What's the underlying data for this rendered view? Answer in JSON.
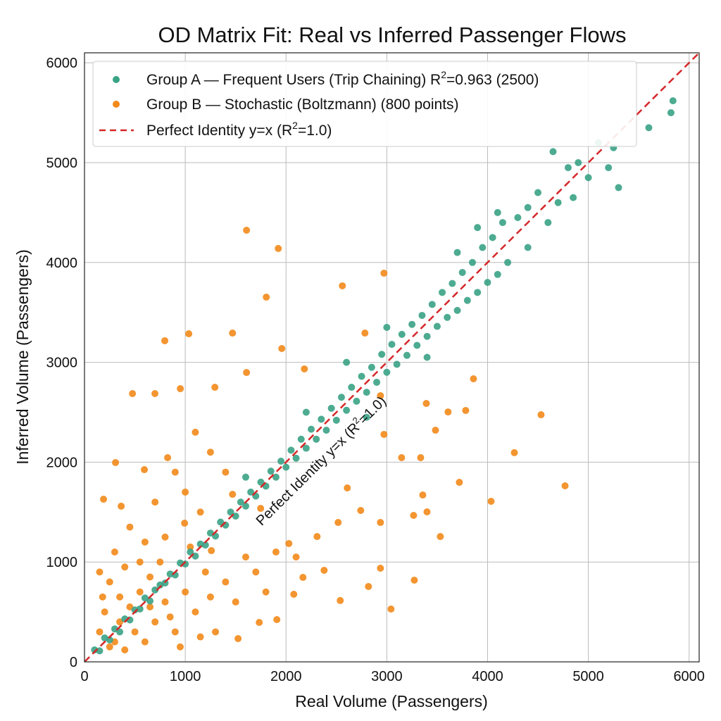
{
  "chart_data": {
    "type": "scatter",
    "title": "OD Matrix Fit: Real vs Inferred Passenger Flows",
    "xlabel": "Real Volume (Passengers)",
    "ylabel": "Inferred Volume (Passengers)",
    "xlim": [
      0,
      6100
    ],
    "ylim": [
      0,
      6100
    ],
    "xticks": [
      0,
      1000,
      2000,
      3000,
      4000,
      5000,
      6000
    ],
    "yticks": [
      0,
      1000,
      2000,
      3000,
      4000,
      5000,
      6000
    ],
    "grid": true,
    "legend_position": "top-left",
    "legend": [
      {
        "label_main": "Group A — Frequent Users (Trip Chaining) R",
        "sup": "2",
        "label_tail": "=0.963 (2500)",
        "kind": "marker",
        "color": "#3aa285"
      },
      {
        "label_main": "Group B — Stochastic (Boltzmann) (800 points)",
        "sup": "",
        "label_tail": "",
        "kind": "marker",
        "color": "#f28a1a"
      },
      {
        "label_main": "Perfect Identity y=x (R",
        "sup": "2",
        "label_tail": "=1.0)",
        "kind": "dashed-line",
        "color": "#d62728"
      }
    ],
    "annotation": {
      "text_main": "Perfect Identity y=x (R",
      "sup": "2",
      "text_tail": "=1.0)",
      "x": 2380,
      "y": 1980
    },
    "series": [
      {
        "name": "Group B — Stochastic (Boltzmann) (800 points)",
        "color": "#f28a1a",
        "points": [
          [
            1608,
            4323
          ],
          [
            1923,
            4140
          ],
          [
            1804,
            3653
          ],
          [
            2972,
            3893
          ],
          [
            2559,
            3766
          ],
          [
            1035,
            3286
          ],
          [
            1469,
            3293
          ],
          [
            797,
            3216
          ],
          [
            2783,
            3293
          ],
          [
            1958,
            3138
          ],
          [
            2182,
            2934
          ],
          [
            1608,
            2898
          ],
          [
            3860,
            2835
          ],
          [
            476,
            2687
          ],
          [
            699,
            2687
          ],
          [
            951,
            2736
          ],
          [
            1294,
            2750
          ],
          [
            2937,
            2666
          ],
          [
            3392,
            2588
          ],
          [
            3783,
            2518
          ],
          [
            4531,
            2475
          ],
          [
            3608,
            2503
          ],
          [
            3483,
            2320
          ],
          [
            4266,
            2095
          ],
          [
            4769,
            1763
          ],
          [
            4035,
            1608
          ],
          [
            3720,
            1798
          ],
          [
            2972,
            2278
          ],
          [
            3147,
            2045
          ],
          [
            3336,
            2045
          ],
          [
            308,
            1996
          ],
          [
            594,
            1925
          ],
          [
            825,
            2045
          ],
          [
            3357,
            1671
          ],
          [
            3399,
            1502
          ],
          [
            3531,
            1255
          ],
          [
            3266,
            1467
          ],
          [
            2937,
            1396
          ],
          [
            2608,
            1742
          ],
          [
            2741,
            1516
          ],
          [
            3042,
            529
          ],
          [
            3273,
            818
          ],
          [
            2937,
            938
          ],
          [
            2818,
            755
          ],
          [
            2538,
            614
          ],
          [
            2077,
            677
          ],
          [
            1909,
            423
          ],
          [
            1734,
            395
          ],
          [
            1524,
            233
          ],
          [
            2168,
            846
          ],
          [
            2378,
            917
          ],
          [
            189,
            1629
          ],
          [
            364,
            1559
          ],
          [
            993,
            1389
          ],
          [
            1259,
            1114
          ],
          [
            2308,
            1255
          ],
          [
            2028,
            1185
          ],
          [
            2517,
            1396
          ],
          [
            1469,
            1678
          ],
          [
            1748,
            1537
          ],
          [
            1100,
            2300
          ],
          [
            1250,
            2100
          ],
          [
            900,
            1900
          ],
          [
            1400,
            1900
          ],
          [
            700,
            1600
          ],
          [
            1000,
            1700
          ],
          [
            1150,
            1500
          ],
          [
            450,
            1350
          ],
          [
            600,
            1200
          ],
          [
            300,
            1100
          ],
          [
            800,
            1250
          ],
          [
            150,
            900
          ],
          [
            250,
            800
          ],
          [
            400,
            950
          ],
          [
            550,
            1000
          ],
          [
            650,
            850
          ],
          [
            750,
            1000
          ],
          [
            350,
            650
          ],
          [
            200,
            500
          ],
          [
            450,
            550
          ],
          [
            150,
            300
          ],
          [
            300,
            200
          ],
          [
            500,
            300
          ],
          [
            600,
            200
          ],
          [
            700,
            400
          ],
          [
            800,
            600
          ],
          [
            900,
            300
          ],
          [
            1000,
            700
          ],
          [
            1100,
            500
          ],
          [
            1200,
            900
          ],
          [
            1300,
            300
          ],
          [
            1500,
            600
          ],
          [
            1700,
            900
          ],
          [
            1400,
            800
          ],
          [
            1600,
            1050
          ],
          [
            1900,
            1100
          ],
          [
            850,
            450
          ],
          [
            950,
            150
          ],
          [
            1150,
            250
          ],
          [
            650,
            550
          ],
          [
            250,
            150
          ],
          [
            400,
            120
          ],
          [
            180,
            650
          ],
          [
            350,
            400
          ],
          [
            550,
            700
          ],
          [
            1050,
            1150
          ],
          [
            1250,
            650
          ],
          [
            1800,
            700
          ],
          [
            2100,
            1050
          ]
        ]
      },
      {
        "name": "Group A — Frequent Users (Trip Chaining) R2=0.963 (2500)",
        "color": "#3aa285",
        "points": [
          [
            100,
            120
          ],
          [
            150,
            110
          ],
          [
            200,
            240
          ],
          [
            250,
            220
          ],
          [
            300,
            330
          ],
          [
            350,
            300
          ],
          [
            400,
            430
          ],
          [
            450,
            420
          ],
          [
            500,
            520
          ],
          [
            550,
            530
          ],
          [
            600,
            640
          ],
          [
            650,
            610
          ],
          [
            700,
            720
          ],
          [
            750,
            770
          ],
          [
            800,
            790
          ],
          [
            850,
            880
          ],
          [
            900,
            870
          ],
          [
            950,
            990
          ],
          [
            1000,
            980
          ],
          [
            1050,
            1100
          ],
          [
            1100,
            1060
          ],
          [
            1150,
            1180
          ],
          [
            1200,
            1170
          ],
          [
            1250,
            1290
          ],
          [
            1300,
            1260
          ],
          [
            1350,
            1400
          ],
          [
            1400,
            1370
          ],
          [
            1450,
            1500
          ],
          [
            1500,
            1460
          ],
          [
            1550,
            1600
          ],
          [
            1600,
            1560
          ],
          [
            1650,
            1700
          ],
          [
            1700,
            1660
          ],
          [
            1750,
            1800
          ],
          [
            1800,
            1760
          ],
          [
            1850,
            1910
          ],
          [
            1900,
            1850
          ],
          [
            1950,
            2010
          ],
          [
            2000,
            1950
          ],
          [
            2050,
            2120
          ],
          [
            2100,
            2040
          ],
          [
            2150,
            2230
          ],
          [
            2200,
            2140
          ],
          [
            2250,
            2330
          ],
          [
            2300,
            2230
          ],
          [
            2350,
            2430
          ],
          [
            2400,
            2320
          ],
          [
            2450,
            2540
          ],
          [
            2500,
            2420
          ],
          [
            2550,
            2650
          ],
          [
            2600,
            2520
          ],
          [
            2650,
            2750
          ],
          [
            2700,
            2610
          ],
          [
            2750,
            2860
          ],
          [
            2800,
            2700
          ],
          [
            2850,
            2950
          ],
          [
            2900,
            2800
          ],
          [
            2950,
            3080
          ],
          [
            3000,
            2900
          ],
          [
            3050,
            3180
          ],
          [
            3100,
            2980
          ],
          [
            3150,
            3280
          ],
          [
            3200,
            3070
          ],
          [
            3250,
            3380
          ],
          [
            3300,
            3170
          ],
          [
            3350,
            3470
          ],
          [
            3400,
            3260
          ],
          [
            3450,
            3580
          ],
          [
            3500,
            3360
          ],
          [
            3550,
            3700
          ],
          [
            3600,
            3450
          ],
          [
            3650,
            3790
          ],
          [
            3700,
            3520
          ],
          [
            3750,
            3900
          ],
          [
            3800,
            3620
          ],
          [
            3850,
            4000
          ],
          [
            3900,
            3700
          ],
          [
            3950,
            4150
          ],
          [
            4000,
            3800
          ],
          [
            4050,
            4250
          ],
          [
            4100,
            3880
          ],
          [
            4150,
            4400
          ],
          [
            4200,
            4000
          ],
          [
            4300,
            4450
          ],
          [
            4400,
            4150
          ],
          [
            4500,
            4700
          ],
          [
            4600,
            4400
          ],
          [
            4650,
            5110
          ],
          [
            4700,
            4600
          ],
          [
            4800,
            4950
          ],
          [
            4850,
            4650
          ],
          [
            4900,
            5000
          ],
          [
            5000,
            4850
          ],
          [
            5100,
            5200
          ],
          [
            5200,
            4950
          ],
          [
            5250,
            5150
          ],
          [
            5300,
            4750
          ],
          [
            5600,
            5350
          ],
          [
            5820,
            5500
          ],
          [
            5840,
            5620
          ],
          [
            2200,
            2500
          ],
          [
            2600,
            3000
          ],
          [
            3000,
            3350
          ],
          [
            1600,
            1850
          ],
          [
            3400,
            3050
          ],
          [
            2800,
            2450
          ],
          [
            3700,
            4100
          ],
          [
            4100,
            4500
          ],
          [
            4400,
            4550
          ],
          [
            3900,
            4350
          ]
        ]
      }
    ],
    "identity_line": {
      "from": [
        0,
        0
      ],
      "to": [
        6100,
        6100
      ],
      "color": "#d62728"
    }
  }
}
